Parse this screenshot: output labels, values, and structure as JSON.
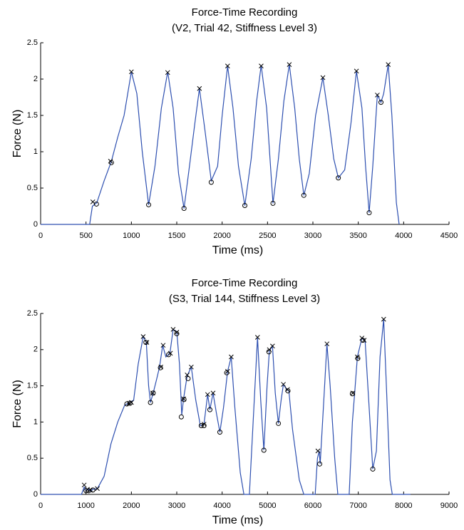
{
  "chart_data": [
    {
      "type": "line",
      "title": "Force-Time Recording",
      "subtitle": "(V2, Trial 42, Stiffness Level 3)",
      "x_label": "Time (ms)",
      "y_label": "Force (N)",
      "xlim": [
        0,
        4500
      ],
      "xticks": [
        0,
        500,
        1000,
        1500,
        2000,
        2500,
        3000,
        3500,
        4000,
        4500
      ],
      "ylim": [
        0,
        2.5
      ],
      "yticks": [
        0,
        0.5,
        1,
        1.5,
        2,
        2.5
      ],
      "series": [
        {
          "marker": "line",
          "color": "#2d4fb0",
          "x": [
            0,
            540,
            570,
            620,
            700,
            780,
            850,
            920,
            1000,
            1060,
            1120,
            1190,
            1260,
            1330,
            1400,
            1460,
            1520,
            1580,
            1640,
            1700,
            1750,
            1810,
            1880,
            1950,
            2000,
            2060,
            2120,
            2180,
            2250,
            2320,
            2380,
            2430,
            2490,
            2560,
            2620,
            2680,
            2740,
            2800,
            2850,
            2900,
            2960,
            3030,
            3110,
            3170,
            3230,
            3280,
            3350,
            3420,
            3480,
            3540,
            3580,
            3620,
            3660,
            3710,
            3750,
            3780,
            3830,
            3870,
            3920,
            3950
          ],
          "values": [
            0,
            0,
            0.25,
            0.3,
            0.6,
            0.87,
            1.2,
            1.5,
            2.1,
            1.8,
            1.0,
            0.27,
            0.8,
            1.6,
            2.1,
            1.6,
            0.7,
            0.22,
            0.8,
            1.4,
            1.87,
            1.3,
            0.6,
            0.8,
            1.5,
            2.18,
            1.6,
            0.8,
            0.26,
            0.9,
            1.7,
            2.19,
            1.6,
            0.29,
            0.9,
            1.7,
            2.2,
            1.6,
            0.9,
            0.4,
            0.7,
            1.5,
            2.02,
            1.5,
            0.9,
            0.64,
            0.75,
            1.4,
            2.11,
            1.6,
            0.8,
            0.16,
            0.8,
            1.78,
            1.68,
            1.8,
            2.2,
            1.5,
            0.3,
            0
          ]
        },
        {
          "marker": "x",
          "color": "#000000",
          "x": [
            575,
            770,
            1000,
            1400,
            1750,
            2060,
            2430,
            2740,
            3110,
            3480,
            3710,
            3830
          ],
          "values": [
            0.31,
            0.87,
            2.1,
            2.09,
            1.87,
            2.18,
            2.18,
            2.2,
            2.02,
            2.11,
            1.78,
            2.2
          ]
        },
        {
          "marker": "o",
          "color": "#000000",
          "x": [
            615,
            780,
            1190,
            1580,
            1880,
            2250,
            2560,
            2900,
            3280,
            3620,
            3750
          ],
          "values": [
            0.28,
            0.85,
            0.27,
            0.22,
            0.58,
            0.26,
            0.29,
            0.4,
            0.64,
            0.16,
            1.68
          ]
        }
      ]
    },
    {
      "type": "line",
      "title": "Force-Time Recording",
      "subtitle": "(S3, Trial 144, Stiffness Level 3)",
      "x_label": "Time (ms)",
      "y_label": "Force (N)",
      "xlim": [
        0,
        9000
      ],
      "xticks": [
        0,
        1000,
        2000,
        3000,
        4000,
        5000,
        6000,
        7000,
        8000,
        9000
      ],
      "ylim": [
        0,
        2.5
      ],
      "yticks": [
        0,
        0.5,
        1,
        1.5,
        2,
        2.5
      ],
      "series": [
        {
          "marker": "line",
          "color": "#2d4fb0",
          "x": [
            0,
            900,
            960,
            1000,
            1050,
            1100,
            1150,
            1250,
            1400,
            1550,
            1700,
            1850,
            1950,
            2050,
            2150,
            2260,
            2330,
            2380,
            2420,
            2480,
            2560,
            2620,
            2690,
            2760,
            2850,
            2920,
            3000,
            3060,
            3110,
            3150,
            3230,
            3320,
            3420,
            3520,
            3600,
            3680,
            3730,
            3800,
            3880,
            3950,
            4030,
            4120,
            4200,
            4280,
            4400,
            4480,
            4600,
            4700,
            4780,
            4850,
            4920,
            4990,
            5040,
            5110,
            5170,
            5240,
            5300,
            5350,
            5420,
            5470,
            5550,
            5700,
            5800,
            6050,
            6100,
            6140,
            6160,
            6240,
            6310,
            6380,
            6480,
            6550,
            6800,
            6870,
            6920,
            6980,
            7080,
            7150,
            7230,
            7320,
            7400,
            7480,
            7560,
            7620,
            7700,
            7750,
            8150
          ],
          "values": [
            0,
            0,
            0.1,
            0.05,
            0.08,
            0.04,
            0.07,
            0.08,
            0.25,
            0.7,
            1.0,
            1.23,
            1.27,
            1.3,
            1.8,
            2.18,
            2.1,
            1.5,
            1.27,
            1.4,
            1.6,
            1.76,
            2.06,
            1.9,
            1.95,
            2.28,
            2.25,
            1.8,
            1.1,
            1.32,
            1.64,
            1.76,
            1.3,
            0.95,
            0.97,
            1.38,
            1.17,
            1.4,
            1.1,
            0.86,
            1.2,
            1.7,
            1.9,
            1.2,
            0.3,
            0,
            0,
            1.2,
            2.17,
            1.3,
            0.61,
            1.5,
            1.98,
            2.05,
            1.4,
            0.98,
            1.3,
            1.52,
            1.45,
            1.43,
            0.9,
            0.2,
            0,
            0,
            0.5,
            0.6,
            0.42,
            1.3,
            2.08,
            1.5,
            0.5,
            0,
            0,
            1.0,
            1.4,
            1.9,
            2.16,
            2.13,
            1.3,
            0.35,
            0.6,
            1.9,
            2.42,
            1.5,
            0.2,
            0,
            0
          ]
        },
        {
          "marker": "x",
          "color": "#000000",
          "x": [
            960,
            1030,
            1100,
            1250,
            1950,
            2000,
            2260,
            2340,
            2470,
            2650,
            2700,
            2860,
            2920,
            3000,
            3150,
            3230,
            3320,
            3600,
            3680,
            3800,
            4120,
            4200,
            4780,
            5040,
            5110,
            5350,
            5440,
            6110,
            6310,
            6880,
            6980,
            7080,
            7130,
            7560
          ],
          "values": [
            0.13,
            0.07,
            0.06,
            0.08,
            1.26,
            1.27,
            2.18,
            2.1,
            1.4,
            1.76,
            2.06,
            1.95,
            2.28,
            2.24,
            1.32,
            1.65,
            1.76,
            0.97,
            1.38,
            1.4,
            1.7,
            1.9,
            2.17,
            2.0,
            2.05,
            1.52,
            1.45,
            0.6,
            2.08,
            1.4,
            1.9,
            2.16,
            2.13,
            2.42
          ]
        },
        {
          "marker": "o",
          "color": "#000000",
          "x": [
            1000,
            1060,
            1150,
            1900,
            1970,
            2320,
            2420,
            2480,
            2640,
            2820,
            3000,
            3100,
            3160,
            3250,
            3540,
            3600,
            3730,
            3950,
            4100,
            4920,
            5030,
            5240,
            5450,
            6150,
            6870,
            6990,
            7100,
            7320
          ],
          "values": [
            0.05,
            0.05,
            0.06,
            1.25,
            1.26,
            2.1,
            1.27,
            1.4,
            1.75,
            1.93,
            2.22,
            1.07,
            1.31,
            1.6,
            0.95,
            0.95,
            1.17,
            0.86,
            1.68,
            0.61,
            1.97,
            0.98,
            1.43,
            0.42,
            1.39,
            1.88,
            2.13,
            0.35
          ]
        }
      ]
    }
  ]
}
